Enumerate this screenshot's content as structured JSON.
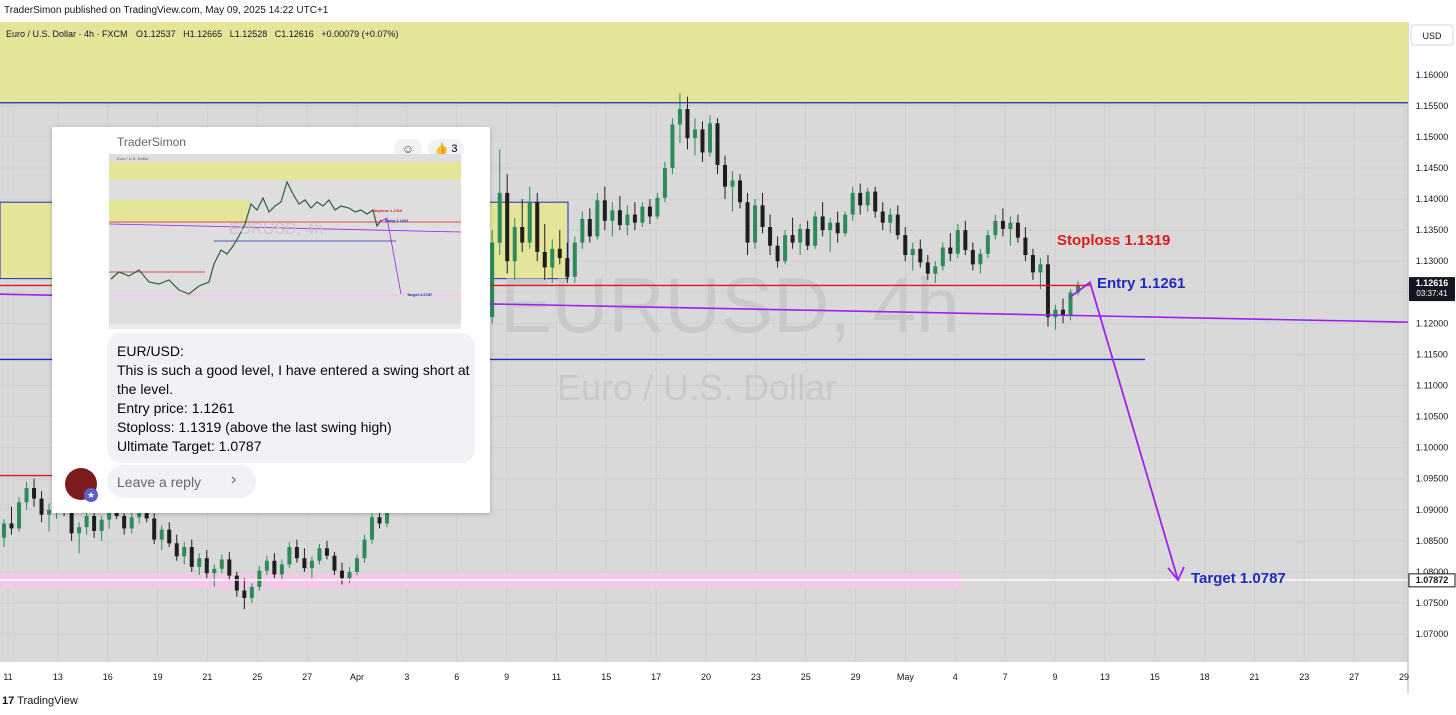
{
  "header": {
    "published_text": "TraderSimon published on TradingView.com, May 09, 2025 14:22 UTC+1"
  },
  "footer": {
    "logo_text": "TradingView",
    "logo_mark": "17"
  },
  "colors": {
    "zone_fill": "#e5e599",
    "support_fill": "#f3c8e8",
    "red_line": "#e0191c",
    "blue_line": "#1e2bbd",
    "purple_line": "#a020f0",
    "stoploss_text": "#e0191c",
    "entry_text": "#1e2bbd",
    "target_text": "#1e2bbd",
    "bull_candle": "#2e8b57",
    "bear_candle": "#1e1e1e",
    "price_tag_bg": "#131722"
  },
  "chart_data": {
    "type": "candlestick",
    "symbol_line": "Euro / U.S. Dollar · 4h · FXCM",
    "ohlc": {
      "o_label": "O",
      "o": "1.12537",
      "h_label": "H",
      "h": "1.12665",
      "l_label": "L",
      "l": "1.12528",
      "c_label": "C",
      "c": "1.12616",
      "change": "+0.00079 (+0.07%)"
    },
    "watermark_symbol": "EURUSD, 4h",
    "watermark_name": "Euro / U.S. Dollar",
    "currency": "USD",
    "y_ticks": [
      "1.16000",
      "1.15500",
      "1.15000",
      "1.14500",
      "1.14000",
      "1.13500",
      "1.13000",
      "1.12500",
      "1.12000",
      "1.11500",
      "1.11000",
      "1.10500",
      "1.10000",
      "1.09500",
      "1.09000",
      "1.08500",
      "1.08000",
      "1.07500",
      "1.07000"
    ],
    "ylim": [
      1.0655,
      1.1685
    ],
    "x_ticks": [
      "11",
      "13",
      "16",
      "19",
      "21",
      "25",
      "27",
      "Apr",
      "3",
      "6",
      "9",
      "11",
      "15",
      "17",
      "20",
      "23",
      "25",
      "29",
      "May",
      "4",
      "7",
      "9",
      "13",
      "15",
      "18",
      "21",
      "23",
      "27",
      "29"
    ],
    "last_price": {
      "value": "1.12616",
      "countdown": "03:37:41"
    },
    "target_price_tag": "1.07872",
    "annotations": {
      "stoploss": "Stoploss 1.1319",
      "entry": "Entry 1.1261",
      "target": "Target 1.0787"
    },
    "levels": {
      "resistance_zone": [
        1.1555,
        1.1685
      ],
      "left_zone": [
        1.1272,
        1.1395
      ],
      "red_level": 1.1261,
      "blue_upper": 1.1555,
      "blue_lower": 1.1142,
      "target_line": 1.0787,
      "support_zone": [
        1.0774,
        1.0797
      ]
    },
    "candles": [
      [
        1.0855,
        1.0885,
        1.084,
        1.0878
      ],
      [
        1.0878,
        1.0905,
        1.086,
        1.087
      ],
      [
        1.087,
        1.092,
        1.0865,
        1.0912
      ],
      [
        1.0912,
        1.0945,
        1.09,
        1.0935
      ],
      [
        1.0935,
        1.095,
        1.0905,
        1.0918
      ],
      [
        1.0918,
        1.093,
        1.088,
        1.0892
      ],
      [
        1.0892,
        1.091,
        1.0865,
        1.09
      ],
      [
        1.09,
        1.0925,
        1.0885,
        1.0918
      ],
      [
        1.0918,
        1.0935,
        1.089,
        1.0896
      ],
      [
        1.0896,
        1.0905,
        1.085,
        1.0862
      ],
      [
        1.0862,
        1.088,
        1.083,
        1.0872
      ],
      [
        1.0872,
        1.09,
        1.086,
        1.089
      ],
      [
        1.089,
        1.0905,
        1.0855,
        1.0866
      ],
      [
        1.0866,
        1.089,
        1.085,
        1.0884
      ],
      [
        1.0884,
        1.091,
        1.087,
        1.0902
      ],
      [
        1.0902,
        1.092,
        1.0885,
        1.089
      ],
      [
        1.089,
        1.09,
        1.086,
        1.087
      ],
      [
        1.087,
        1.0895,
        1.0862,
        1.0888
      ],
      [
        1.0888,
        1.0915,
        1.0878,
        1.0905
      ],
      [
        1.0905,
        1.0918,
        1.088,
        1.0886
      ],
      [
        1.0886,
        1.0898,
        1.0845,
        1.0852
      ],
      [
        1.0852,
        1.0875,
        1.0835,
        1.0868
      ],
      [
        1.0868,
        1.088,
        1.084,
        1.0846
      ],
      [
        1.0846,
        1.086,
        1.0818,
        1.0825
      ],
      [
        1.0825,
        1.0848,
        1.0812,
        1.084
      ],
      [
        1.084,
        1.0852,
        1.08,
        1.0808
      ],
      [
        1.0808,
        1.083,
        1.0795,
        1.0822
      ],
      [
        1.0822,
        1.0835,
        1.079,
        1.0798
      ],
      [
        1.0798,
        1.0812,
        1.0776,
        1.0805
      ],
      [
        1.0805,
        1.0828,
        1.0798,
        1.082
      ],
      [
        1.082,
        1.0832,
        1.0786,
        1.0794
      ],
      [
        1.0794,
        1.08,
        1.076,
        1.077
      ],
      [
        1.077,
        1.079,
        1.074,
        1.0758
      ],
      [
        1.0758,
        1.0782,
        1.075,
        1.0776
      ],
      [
        1.0776,
        1.081,
        1.077,
        1.0802
      ],
      [
        1.0802,
        1.0826,
        1.0795,
        1.0818
      ],
      [
        1.0818,
        1.083,
        1.079,
        1.0796
      ],
      [
        1.0796,
        1.082,
        1.0788,
        1.0812
      ],
      [
        1.0812,
        1.0848,
        1.0806,
        1.084
      ],
      [
        1.084,
        1.0852,
        1.0815,
        1.0822
      ],
      [
        1.0822,
        1.0838,
        1.08,
        1.0806
      ],
      [
        1.0806,
        1.0825,
        1.079,
        1.0818
      ],
      [
        1.0818,
        1.0845,
        1.0812,
        1.0838
      ],
      [
        1.0838,
        1.085,
        1.082,
        1.0826
      ],
      [
        1.0826,
        1.0832,
        1.0795,
        1.0802
      ],
      [
        1.0802,
        1.0815,
        1.078,
        1.079
      ],
      [
        1.079,
        1.0808,
        1.0782,
        1.08
      ],
      [
        1.08,
        1.0828,
        1.0795,
        1.0822
      ],
      [
        1.0822,
        1.086,
        1.0815,
        1.0852
      ],
      [
        1.0852,
        1.0895,
        1.0845,
        1.0888
      ],
      [
        1.0888,
        1.091,
        1.087,
        1.0878
      ],
      [
        1.0878,
        1.092,
        1.0872,
        1.0912
      ],
      [
        1.0912,
        1.095,
        1.0902,
        1.0942
      ],
      [
        1.0942,
        1.0955,
        1.0905,
        1.0915
      ],
      [
        1.0915,
        1.0945,
        1.0895,
        1.0932
      ],
      [
        1.0932,
        1.0985,
        1.0925,
        1.0975
      ],
      [
        1.0975,
        1.101,
        1.0955,
        1.0995
      ],
      [
        1.0995,
        1.103,
        1.098,
        1.1018
      ],
      [
        1.1018,
        1.106,
        1.1005,
        1.105
      ],
      [
        1.105,
        1.1065,
        1.1,
        1.1012
      ],
      [
        1.1012,
        1.103,
        1.0975,
        1.0985
      ],
      [
        1.0985,
        1.104,
        1.0978,
        1.1032
      ],
      [
        1.1032,
        1.1095,
        1.1025,
        1.1088
      ],
      [
        1.1088,
        1.114,
        1.1075,
        1.1132
      ],
      [
        1.1132,
        1.1225,
        1.112,
        1.121
      ],
      [
        1.121,
        1.135,
        1.12,
        1.133
      ],
      [
        1.133,
        1.148,
        1.131,
        1.141
      ],
      [
        1.141,
        1.144,
        1.128,
        1.13
      ],
      [
        1.13,
        1.137,
        1.127,
        1.1355
      ],
      [
        1.1355,
        1.14,
        1.1315,
        1.133
      ],
      [
        1.133,
        1.142,
        1.132,
        1.1395
      ],
      [
        1.1395,
        1.141,
        1.13,
        1.1315
      ],
      [
        1.1315,
        1.136,
        1.127,
        1.129
      ],
      [
        1.129,
        1.1335,
        1.1265,
        1.132
      ],
      [
        1.132,
        1.135,
        1.1295,
        1.1305
      ],
      [
        1.1305,
        1.133,
        1.1265,
        1.1275
      ],
      [
        1.1275,
        1.134,
        1.1265,
        1.133
      ],
      [
        1.133,
        1.138,
        1.132,
        1.1368
      ],
      [
        1.1368,
        1.1385,
        1.133,
        1.134
      ],
      [
        1.134,
        1.141,
        1.1335,
        1.1398
      ],
      [
        1.1398,
        1.142,
        1.135,
        1.1365
      ],
      [
        1.1365,
        1.1395,
        1.134,
        1.1382
      ],
      [
        1.1382,
        1.1405,
        1.135,
        1.1358
      ],
      [
        1.1358,
        1.139,
        1.1342,
        1.1375
      ],
      [
        1.1375,
        1.1395,
        1.135,
        1.1362
      ],
      [
        1.1362,
        1.1395,
        1.1355,
        1.1388
      ],
      [
        1.1388,
        1.14,
        1.136,
        1.1372
      ],
      [
        1.1372,
        1.141,
        1.1368,
        1.1402
      ],
      [
        1.1402,
        1.146,
        1.1395,
        1.145
      ],
      [
        1.145,
        1.153,
        1.144,
        1.152
      ],
      [
        1.152,
        1.157,
        1.149,
        1.1545
      ],
      [
        1.1545,
        1.1565,
        1.148,
        1.1498
      ],
      [
        1.1498,
        1.153,
        1.147,
        1.1512
      ],
      [
        1.1512,
        1.1525,
        1.146,
        1.1475
      ],
      [
        1.1475,
        1.1535,
        1.1468,
        1.1522
      ],
      [
        1.1522,
        1.153,
        1.144,
        1.1455
      ],
      [
        1.1455,
        1.147,
        1.14,
        1.142
      ],
      [
        1.142,
        1.1445,
        1.138,
        1.143
      ],
      [
        1.143,
        1.144,
        1.1385,
        1.1395
      ],
      [
        1.1395,
        1.141,
        1.131,
        1.133
      ],
      [
        1.133,
        1.14,
        1.132,
        1.139
      ],
      [
        1.139,
        1.141,
        1.1345,
        1.1355
      ],
      [
        1.1355,
        1.1375,
        1.131,
        1.1325
      ],
      [
        1.1325,
        1.134,
        1.129,
        1.13
      ],
      [
        1.13,
        1.135,
        1.1295,
        1.1342
      ],
      [
        1.1342,
        1.137,
        1.132,
        1.133
      ],
      [
        1.133,
        1.136,
        1.131,
        1.1352
      ],
      [
        1.1352,
        1.1365,
        1.1318,
        1.1325
      ],
      [
        1.1325,
        1.138,
        1.132,
        1.1372
      ],
      [
        1.1372,
        1.1395,
        1.134,
        1.135
      ],
      [
        1.135,
        1.137,
        1.1315,
        1.1362
      ],
      [
        1.1362,
        1.138,
        1.133,
        1.1345
      ],
      [
        1.1345,
        1.138,
        1.134,
        1.1375
      ],
      [
        1.1375,
        1.142,
        1.1365,
        1.141
      ],
      [
        1.141,
        1.1425,
        1.1375,
        1.139
      ],
      [
        1.139,
        1.1418,
        1.138,
        1.1412
      ],
      [
        1.1412,
        1.142,
        1.137,
        1.138
      ],
      [
        1.138,
        1.1395,
        1.135,
        1.1362
      ],
      [
        1.1362,
        1.1385,
        1.1345,
        1.1375
      ],
      [
        1.1375,
        1.139,
        1.1335,
        1.1342
      ],
      [
        1.1342,
        1.1355,
        1.13,
        1.131
      ],
      [
        1.131,
        1.133,
        1.1285,
        1.132
      ],
      [
        1.132,
        1.1335,
        1.129,
        1.1298
      ],
      [
        1.1298,
        1.131,
        1.127,
        1.128
      ],
      [
        1.128,
        1.13,
        1.1265,
        1.1292
      ],
      [
        1.1292,
        1.133,
        1.1285,
        1.1322
      ],
      [
        1.1322,
        1.1345,
        1.13,
        1.1312
      ],
      [
        1.1312,
        1.136,
        1.1305,
        1.135
      ],
      [
        1.135,
        1.1365,
        1.131,
        1.1318
      ],
      [
        1.1318,
        1.133,
        1.1285,
        1.1295
      ],
      [
        1.1295,
        1.132,
        1.128,
        1.1312
      ],
      [
        1.1312,
        1.135,
        1.1305,
        1.1342
      ],
      [
        1.1342,
        1.1375,
        1.1335,
        1.1365
      ],
      [
        1.1365,
        1.1385,
        1.134,
        1.1352
      ],
      [
        1.1352,
        1.1372,
        1.1325,
        1.1362
      ],
      [
        1.1362,
        1.1375,
        1.133,
        1.1338
      ],
      [
        1.1338,
        1.1355,
        1.13,
        1.131
      ],
      [
        1.131,
        1.132,
        1.127,
        1.1282
      ],
      [
        1.1282,
        1.1305,
        1.1255,
        1.1295
      ],
      [
        1.1295,
        1.131,
        1.1195,
        1.121
      ],
      [
        1.121,
        1.123,
        1.119,
        1.1222
      ],
      [
        1.1222,
        1.124,
        1.12,
        1.1212
      ],
      [
        1.1212,
        1.1255,
        1.1205,
        1.125
      ],
      [
        1.125,
        1.1268,
        1.1245,
        1.1262
      ]
    ]
  },
  "comment_card": {
    "author": "TraderSimon",
    "react_icon": "add-reaction-icon",
    "like_icon": "thumbs-up-icon",
    "like_count": "3",
    "thumbnail": {
      "stoploss": "Stoploss 1.1319",
      "entry": "Entry 1.1261",
      "target": "Target 1.0787",
      "watermark": "EURUSD, 4h",
      "sub_watermark": "Euro / U.S. Dollar"
    },
    "lines": [
      "EUR/USD:",
      "This is such a good level, I have entered a swing short at",
      "the level.",
      "Entry price: 1.1261",
      "Stoploss: 1.1319 (above the last swing high)",
      "Ultimate Target: 1.0787"
    ],
    "reply_placeholder": "Leave a reply",
    "reply_chevron": "›",
    "badge_icon": "star-badge-icon",
    "badge_glyph": "★"
  }
}
